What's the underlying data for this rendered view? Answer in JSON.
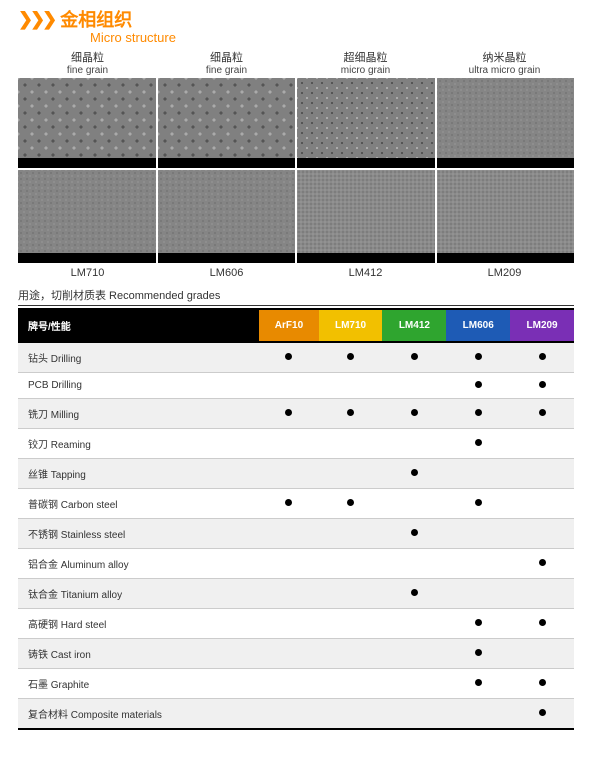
{
  "header": {
    "chevrons": "❯❯❯",
    "title_cn": "金相组织",
    "title_en": "Micro structure"
  },
  "grains": [
    {
      "cn": "细晶粒",
      "en": "fine grain",
      "tex_top": "tex-coarse",
      "tex_bot": "tex-fine",
      "sample": "LM710"
    },
    {
      "cn": "细晶粒",
      "en": "fine grain",
      "tex_top": "tex-coarse",
      "tex_bot": "tex-fine",
      "sample": "LM606"
    },
    {
      "cn": "超细晶粒",
      "en": "micro grain",
      "tex_top": "tex-med",
      "tex_bot": "tex-vfine",
      "sample": "LM412"
    },
    {
      "cn": "纳米晶粒",
      "en": "ultra micro grain",
      "tex_top": "tex-fine",
      "tex_bot": "tex-vfine",
      "sample": "LM209"
    }
  ],
  "table_heading": "用途，切削材质表  Recommended grades",
  "columns": [
    {
      "label": "牌号/性能",
      "bg": "#000000"
    },
    {
      "label": "ArF10",
      "bg": "#e88a00"
    },
    {
      "label": "LM710",
      "bg": "#f2c000"
    },
    {
      "label": "LM412",
      "bg": "#2fa52f"
    },
    {
      "label": "LM606",
      "bg": "#1e5bb5"
    },
    {
      "label": "LM209",
      "bg": "#7a2fb5"
    }
  ],
  "rows": [
    {
      "label": "钻头  Drilling",
      "marks": [
        1,
        1,
        1,
        1,
        1
      ]
    },
    {
      "label": "PCB Drilling",
      "marks": [
        0,
        0,
        0,
        1,
        1
      ]
    },
    {
      "label": "铣刀  Milling",
      "marks": [
        1,
        1,
        1,
        1,
        1
      ]
    },
    {
      "label": "铰刀 Reaming",
      "marks": [
        0,
        0,
        0,
        1,
        0
      ]
    },
    {
      "label": "丝锥 Tapping",
      "marks": [
        0,
        0,
        1,
        0,
        0
      ]
    },
    {
      "label": "普碳钢 Carbon steel",
      "marks": [
        1,
        1,
        0,
        1,
        0
      ]
    },
    {
      "label": "不锈钢 Stainless steel",
      "marks": [
        0,
        0,
        1,
        0,
        0
      ]
    },
    {
      "label": "铝合金 Aluminum alloy",
      "marks": [
        0,
        0,
        0,
        0,
        1
      ]
    },
    {
      "label": "钛合金 Titanium alloy",
      "marks": [
        0,
        0,
        1,
        0,
        0
      ]
    },
    {
      "label": "高硬钢 Hard steel",
      "marks": [
        0,
        0,
        0,
        1,
        1
      ]
    },
    {
      "label": "铸铁 Cast iron",
      "marks": [
        0,
        0,
        0,
        1,
        0
      ]
    },
    {
      "label": "石墨  Graphite",
      "marks": [
        0,
        0,
        0,
        1,
        1
      ]
    },
    {
      "label": "复合材料 Composite materials",
      "marks": [
        0,
        0,
        0,
        0,
        1
      ]
    }
  ]
}
